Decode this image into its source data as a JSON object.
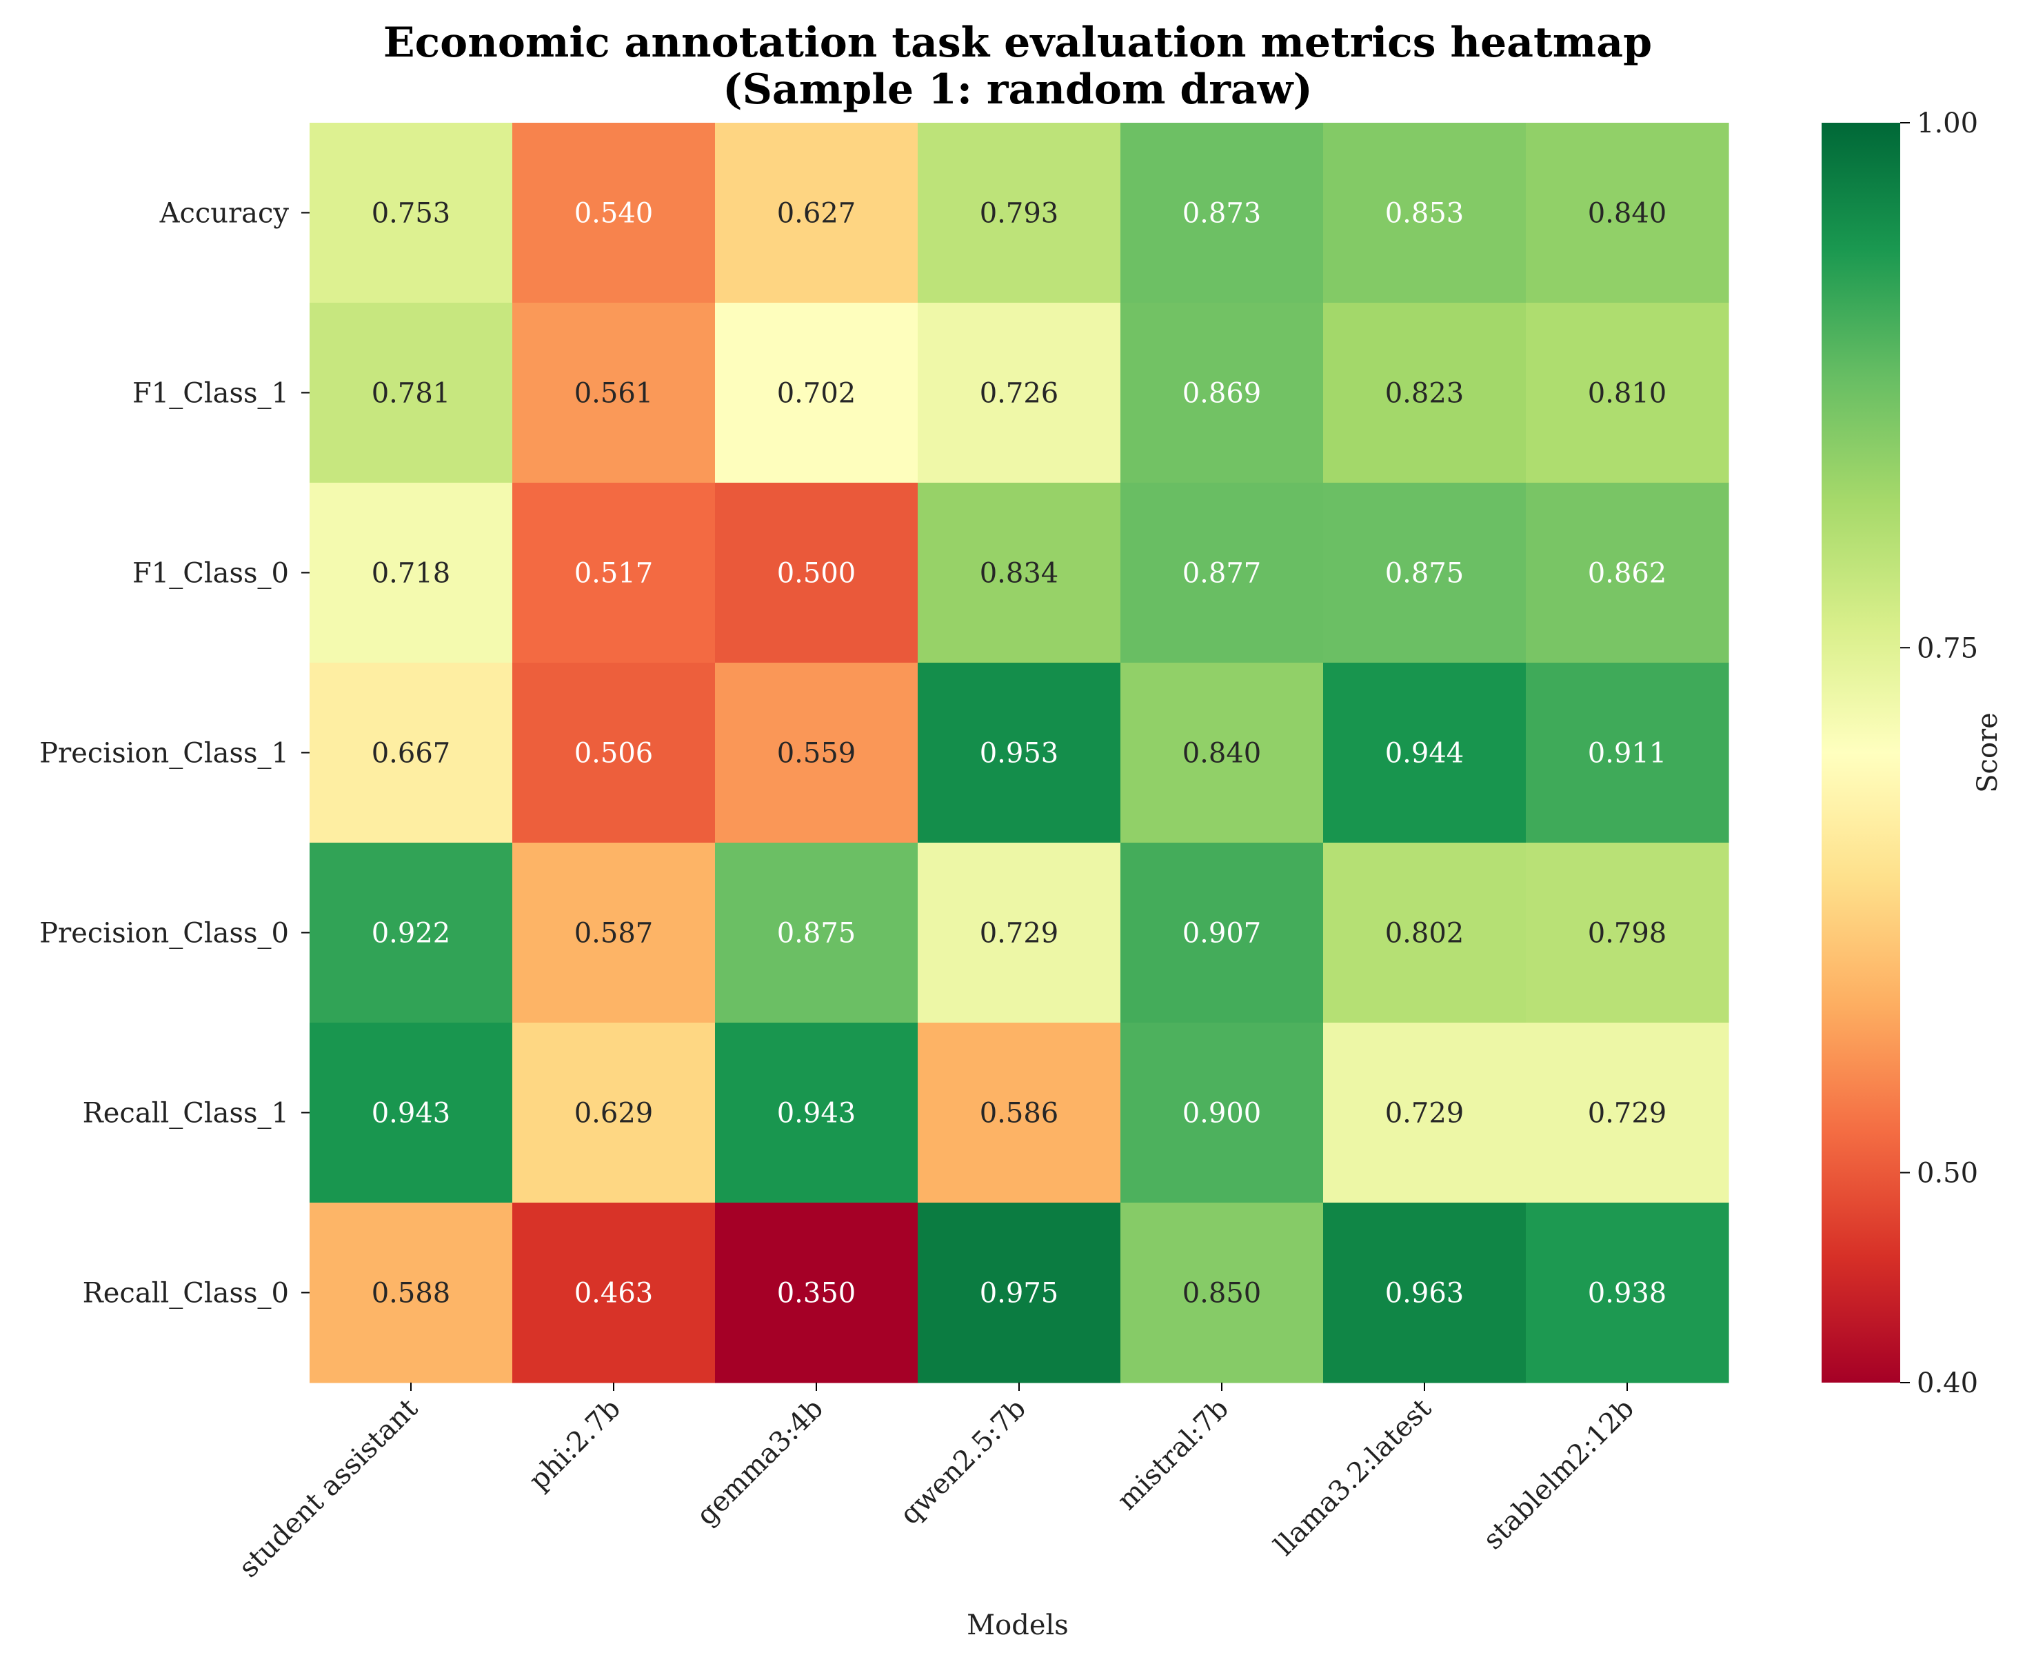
{
  "chart_data": {
    "type": "heatmap",
    "title": [
      "Economic annotation task evaluation metrics heatmap",
      "(Sample 1: random draw)"
    ],
    "xlabel": "Models",
    "ylabel": "",
    "x_categories": [
      "student assistant",
      "phi:2.7b",
      "gemma3:4b",
      "qwen2.5:7b",
      "mistral:7b",
      "llama3.2:latest",
      "stablelm2:12b"
    ],
    "y_categories": [
      "Accuracy",
      "F1_Class_1",
      "F1_Class_0",
      "Precision_Class_1",
      "Precision_Class_0",
      "Recall_Class_1",
      "Recall_Class_0"
    ],
    "values": [
      [
        0.753,
        0.54,
        0.627,
        0.793,
        0.873,
        0.853,
        0.84
      ],
      [
        0.781,
        0.561,
        0.702,
        0.726,
        0.869,
        0.823,
        0.81
      ],
      [
        0.718,
        0.517,
        0.5,
        0.834,
        0.877,
        0.875,
        0.862
      ],
      [
        0.667,
        0.506,
        0.559,
        0.953,
        0.84,
        0.944,
        0.911
      ],
      [
        0.922,
        0.587,
        0.875,
        0.729,
        0.907,
        0.802,
        0.798
      ],
      [
        0.943,
        0.629,
        0.943,
        0.586,
        0.9,
        0.729,
        0.729
      ],
      [
        0.588,
        0.463,
        0.35,
        0.975,
        0.85,
        0.963,
        0.938
      ]
    ],
    "value_format": "0.000",
    "colormap": "RdYlGn",
    "vmin": 0.4,
    "vmax": 1.0,
    "colorbar": {
      "label": "Score",
      "ticks": [
        1.0,
        0.75,
        0.5,
        0.4
      ],
      "tick_labels": [
        "1.00",
        "0.75",
        "0.50",
        "0.40"
      ]
    }
  }
}
